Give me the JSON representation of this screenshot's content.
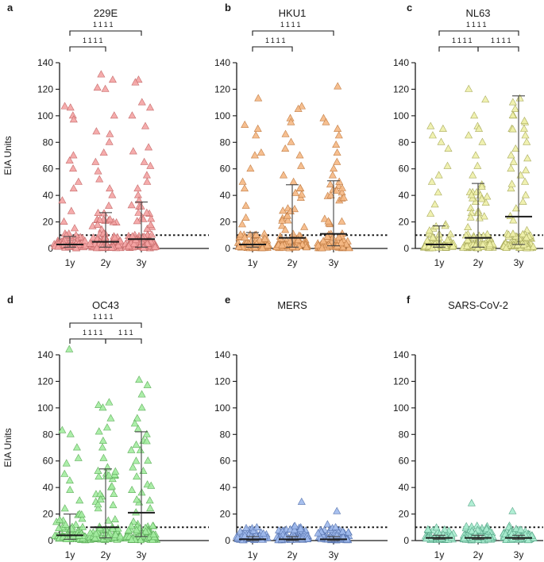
{
  "y_axis_label": "EIA Units",
  "threshold_value": 10,
  "chart_data": [
    {
      "type": "scatter",
      "letter": "a",
      "title": "229E",
      "categories": [
        "1y",
        "2y",
        "3y"
      ],
      "ylim": [
        0,
        140
      ],
      "yticks": [
        0,
        20,
        40,
        60,
        80,
        100,
        120,
        140
      ],
      "color": "#f4a3a3",
      "stroke": "#c56a6a",
      "medians": [
        3,
        5,
        7
      ],
      "q1": [
        1,
        1,
        1
      ],
      "q3": [
        9,
        27,
        35
      ],
      "n_points": [
        75,
        100,
        100
      ],
      "high_values": [
        [
          107,
          106,
          100,
          97,
          70,
          66,
          60,
          50,
          45,
          36,
          28,
          20,
          15
        ],
        [
          131,
          127,
          121,
          120,
          100,
          88,
          86,
          80,
          72,
          65,
          58,
          52,
          45,
          40,
          32
        ],
        [
          127,
          125,
          110,
          106,
          100,
          92,
          76,
          73,
          65,
          62,
          55,
          50,
          45,
          40,
          36
        ]
      ],
      "brackets": [
        {
          "from": 0,
          "to": 1,
          "label": "1111",
          "level": 0
        },
        {
          "from": 0,
          "to": 2,
          "label": "1111",
          "level": 1
        }
      ]
    },
    {
      "type": "scatter",
      "letter": "b",
      "title": "HKU1",
      "categories": [
        "1y",
        "2y",
        "3y"
      ],
      "ylim": [
        0,
        140
      ],
      "yticks": [
        0,
        20,
        40,
        60,
        80,
        100,
        120,
        140
      ],
      "color": "#f5b884",
      "stroke": "#c27d44",
      "medians": [
        3,
        8,
        11
      ],
      "q1": [
        1,
        1,
        2
      ],
      "q3": [
        12,
        48,
        51
      ],
      "n_points": [
        75,
        100,
        100
      ],
      "high_values": [
        [
          113,
          93,
          90,
          85,
          72,
          70,
          60,
          50,
          45,
          32,
          23,
          18
        ],
        [
          107,
          105,
          98,
          95,
          86,
          80,
          75,
          70,
          62,
          55,
          50,
          45,
          38,
          30
        ],
        [
          122,
          98,
          95,
          90,
          85,
          78,
          72,
          65,
          60,
          55,
          48,
          42,
          36
        ]
      ],
      "brackets": [
        {
          "from": 0,
          "to": 1,
          "label": "1111",
          "level": 0
        },
        {
          "from": 0,
          "to": 2,
          "label": "1111",
          "level": 1
        }
      ]
    },
    {
      "type": "scatter",
      "letter": "c",
      "title": "NL63",
      "categories": [
        "1y",
        "2y",
        "3y"
      ],
      "ylim": [
        0,
        140
      ],
      "yticks": [
        0,
        20,
        40,
        60,
        80,
        100,
        120,
        140
      ],
      "color": "#eef0a8",
      "stroke": "#a9ab5c",
      "medians": [
        3,
        8,
        24
      ],
      "q1": [
        1,
        1,
        3
      ],
      "q3": [
        17,
        49,
        115
      ],
      "n_points": [
        80,
        100,
        110
      ],
      "high_values": [
        [
          92,
          90,
          85,
          80,
          75,
          62,
          55,
          50,
          42,
          33,
          26,
          18
        ],
        [
          120,
          112,
          100,
          92,
          90,
          85,
          80,
          70,
          62,
          55,
          48,
          42,
          35,
          28
        ],
        [
          113,
          110,
          105,
          100,
          95,
          90,
          85,
          80,
          75,
          70,
          65,
          60,
          55,
          50,
          45,
          40,
          35,
          30
        ]
      ],
      "brackets": [
        {
          "from": 0,
          "to": 1,
          "label": "1111",
          "level": 0
        },
        {
          "from": 1,
          "to": 2,
          "label": "1111",
          "level": 0
        },
        {
          "from": 0,
          "to": 2,
          "label": "1111",
          "level": 1
        }
      ]
    },
    {
      "type": "scatter",
      "letter": "d",
      "title": "OC43",
      "categories": [
        "1y",
        "2y",
        "3y"
      ],
      "ylim": [
        0,
        140
      ],
      "yticks": [
        0,
        20,
        40,
        60,
        80,
        100,
        120,
        140
      ],
      "color": "#a3eca0",
      "stroke": "#5fae5b",
      "medians": [
        4,
        10,
        21
      ],
      "q1": [
        1,
        2,
        3
      ],
      "q3": [
        20,
        54,
        82
      ],
      "n_points": [
        80,
        100,
        110
      ],
      "high_values": [
        [
          144,
          83,
          80,
          70,
          62,
          58,
          50,
          45,
          38,
          30,
          24
        ],
        [
          104,
          102,
          100,
          92,
          85,
          82,
          75,
          70,
          62,
          55,
          48,
          40,
          33
        ],
        [
          121,
          117,
          110,
          100,
          92,
          88,
          84,
          80,
          75,
          68,
          60,
          55,
          48,
          42,
          36,
          30
        ]
      ],
      "brackets": [
        {
          "from": 0,
          "to": 1,
          "label": "1111",
          "level": 0
        },
        {
          "from": 1,
          "to": 2,
          "label": "111",
          "level": 0
        },
        {
          "from": 0,
          "to": 2,
          "label": "1111",
          "level": 1
        }
      ]
    },
    {
      "type": "scatter",
      "letter": "e",
      "title": "MERS",
      "categories": [
        "1y",
        "2y",
        "3y"
      ],
      "ylim": [
        0,
        140
      ],
      "yticks": [
        0,
        20,
        40,
        60,
        80,
        100,
        120,
        140
      ],
      "color": "#9fb9ec",
      "stroke": "#5a76b0",
      "medians": [
        1,
        1,
        1
      ],
      "q1": [
        0,
        0,
        0
      ],
      "q3": [
        3,
        3,
        3
      ],
      "n_points": [
        60,
        80,
        80
      ],
      "high_values": [
        [
          8,
          6,
          5
        ],
        [
          29,
          7,
          6,
          5
        ],
        [
          22,
          12,
          8,
          6
        ]
      ],
      "brackets": []
    },
    {
      "type": "scatter",
      "letter": "f",
      "title": "SARS-CoV-2",
      "categories": [
        "1y",
        "2y",
        "3y"
      ],
      "ylim": [
        0,
        140
      ],
      "yticks": [
        0,
        20,
        40,
        60,
        80,
        100,
        120,
        140
      ],
      "color": "#a8eccf",
      "stroke": "#5aa88a",
      "medians": [
        2,
        2,
        2
      ],
      "q1": [
        1,
        1,
        1
      ],
      "q3": [
        4,
        4,
        4
      ],
      "n_points": [
        60,
        80,
        80
      ],
      "high_values": [
        [
          8,
          6,
          5
        ],
        [
          28,
          7,
          6
        ],
        [
          22,
          7,
          6,
          5
        ]
      ],
      "brackets": []
    }
  ]
}
